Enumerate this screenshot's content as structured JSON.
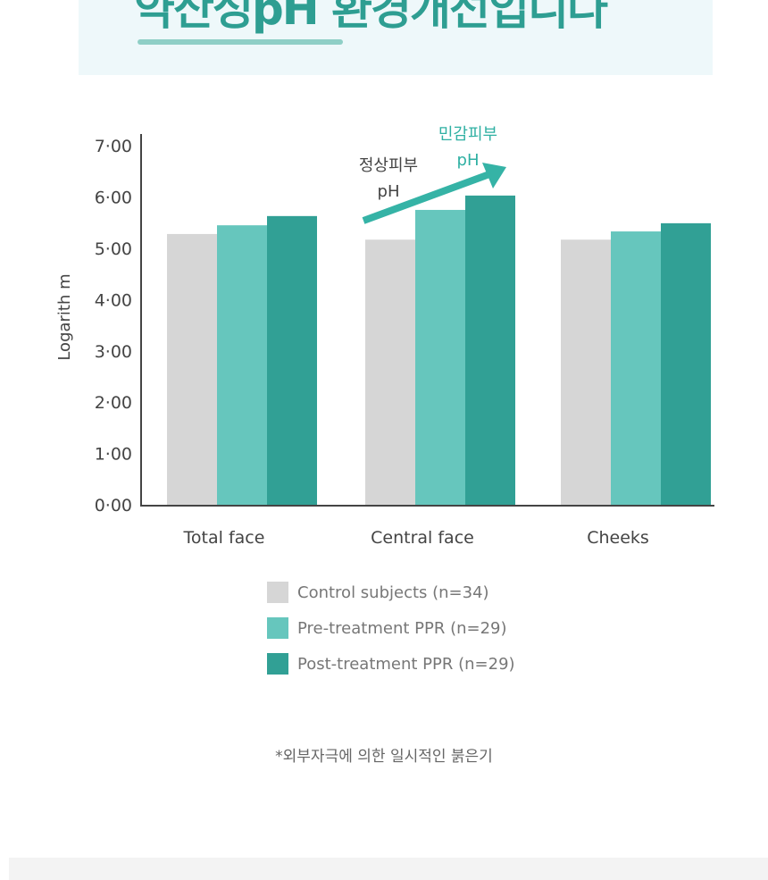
{
  "header": {
    "title": "약산성pH 환경개선입니다"
  },
  "chart_data": {
    "type": "bar",
    "ylabel": "Logarith m",
    "ylim": [
      0,
      7
    ],
    "yticks": [
      "0·00",
      "1·00",
      "2·00",
      "3·00",
      "4·00",
      "5·00",
      "6·00",
      "7·00"
    ],
    "categories": [
      "Total face",
      "Central face",
      "Cheeks"
    ],
    "series": [
      {
        "name": "Control subjects (n=34)",
        "color": "#d6d6d6",
        "values": [
          5.28,
          5.17,
          5.17
        ]
      },
      {
        "name": "Pre-treatment PPR (n=29)",
        "color": "#66c6bd",
        "values": [
          5.45,
          5.75,
          5.33
        ]
      },
      {
        "name": "Post-treatment PPR (n=29)",
        "color": "#31a095",
        "values": [
          5.63,
          6.03,
          5.49
        ]
      }
    ],
    "annotations": {
      "normal_label": "정상피부",
      "normal_ph": "pH",
      "sensitive_label": "민감피부",
      "sensitive_ph": "pH"
    },
    "legend_position": "bottom"
  },
  "footnote": "*외부자극에 의한 일시적인 붉은기"
}
